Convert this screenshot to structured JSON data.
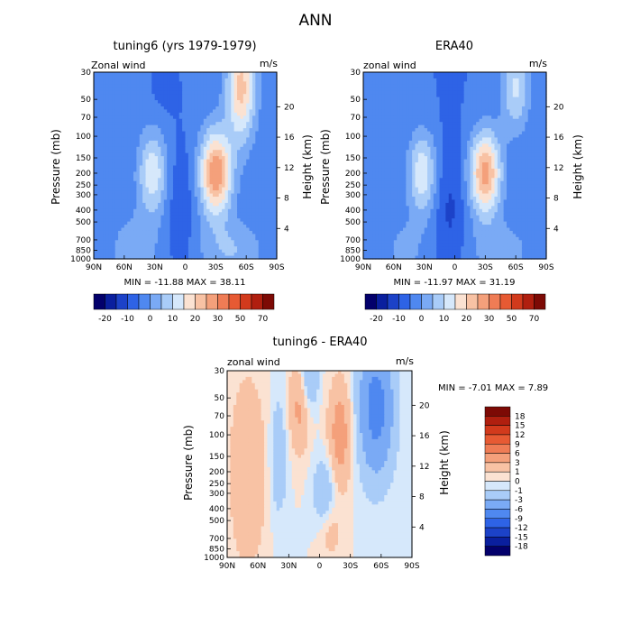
{
  "page_title": "ANN",
  "chart_data": [
    {
      "type": "heatmap",
      "id": "model",
      "title": "tuning6 (yrs 1979-1979)",
      "left_label": "Zonal wind",
      "units": "m/s",
      "ylabel": "Pressure (mb)",
      "ylabel_right": "Height (km)",
      "x_ticks": [
        "90N",
        "60N",
        "30N",
        "0",
        "30S",
        "60S",
        "90S"
      ],
      "y_ticks": [
        "30",
        "50",
        "70",
        "100",
        "150",
        "200",
        "250",
        "300",
        "400",
        "500",
        "700",
        "850",
        "1000"
      ],
      "height_ticks": [
        "20",
        "16",
        "12",
        "8",
        "4"
      ],
      "minmax_text": "MIN = -11.88   MAX = 38.11",
      "min": -11.88,
      "max": 38.11,
      "colorbar_labels": [
        "-20",
        "-10",
        "0",
        "10",
        "20",
        "30",
        "50",
        "70"
      ]
    },
    {
      "type": "heatmap",
      "id": "obs",
      "title": "ERA40",
      "left_label": "zonal wind",
      "units": "m/s",
      "ylabel": "Pressure (mb)",
      "ylabel_right": "Height (km)",
      "x_ticks": [
        "90N",
        "60N",
        "30N",
        "0",
        "30S",
        "60S",
        "90S"
      ],
      "y_ticks": [
        "30",
        "50",
        "70",
        "100",
        "150",
        "200",
        "250",
        "300",
        "400",
        "500",
        "700",
        "850",
        "1000"
      ],
      "height_ticks": [
        "20",
        "16",
        "12",
        "8",
        "4"
      ],
      "minmax_text": "MIN = -11.97   MAX = 31.19",
      "min": -11.97,
      "max": 31.19,
      "colorbar_labels": [
        "-20",
        "-10",
        "0",
        "10",
        "20",
        "30",
        "50",
        "70"
      ]
    },
    {
      "type": "heatmap",
      "id": "diff",
      "title": "tuning6 - ERA40",
      "left_label": "zonal wind",
      "units": "m/s",
      "ylabel": "Pressure (mb)",
      "ylabel_right": "Height (km)",
      "x_ticks": [
        "90N",
        "60N",
        "30N",
        "0",
        "30S",
        "60S",
        "90S"
      ],
      "y_ticks": [
        "30",
        "50",
        "70",
        "100",
        "150",
        "200",
        "250",
        "300",
        "400",
        "500",
        "700",
        "850",
        "1000"
      ],
      "height_ticks": [
        "20",
        "16",
        "12",
        "8",
        "4"
      ],
      "minmax_text": "MIN =  -7.01   MAX =   7.89",
      "min": -7.01,
      "max": 7.89,
      "colorbar_labels": [
        "18",
        "15",
        "12",
        "9",
        "6",
        "3",
        "1",
        "0",
        "-1",
        "-3",
        "-6",
        "-9",
        "-12",
        "-15",
        "-18"
      ]
    }
  ],
  "colors": {
    "abs_scale": [
      "#03006b",
      "#0a1f9e",
      "#1c42c8",
      "#2e63e6",
      "#4f88f0",
      "#7aaaf5",
      "#a9ccf8",
      "#d6e8fb",
      "#fbe2d2",
      "#f8c2a4",
      "#f4a07b",
      "#ef7c55",
      "#e75a33",
      "#d23a1c",
      "#b01f0f",
      "#7d0a05"
    ],
    "diff_scale": [
      "#7d0a05",
      "#b01f0f",
      "#d23a1c",
      "#e75a33",
      "#ef7c55",
      "#f4a07b",
      "#f8c2a4",
      "#fbe2d2",
      "#d6e8fb",
      "#a9ccf8",
      "#7aaaf5",
      "#4f88f0",
      "#2e63e6",
      "#1c42c8",
      "#0a1f9e",
      "#03006b"
    ]
  }
}
